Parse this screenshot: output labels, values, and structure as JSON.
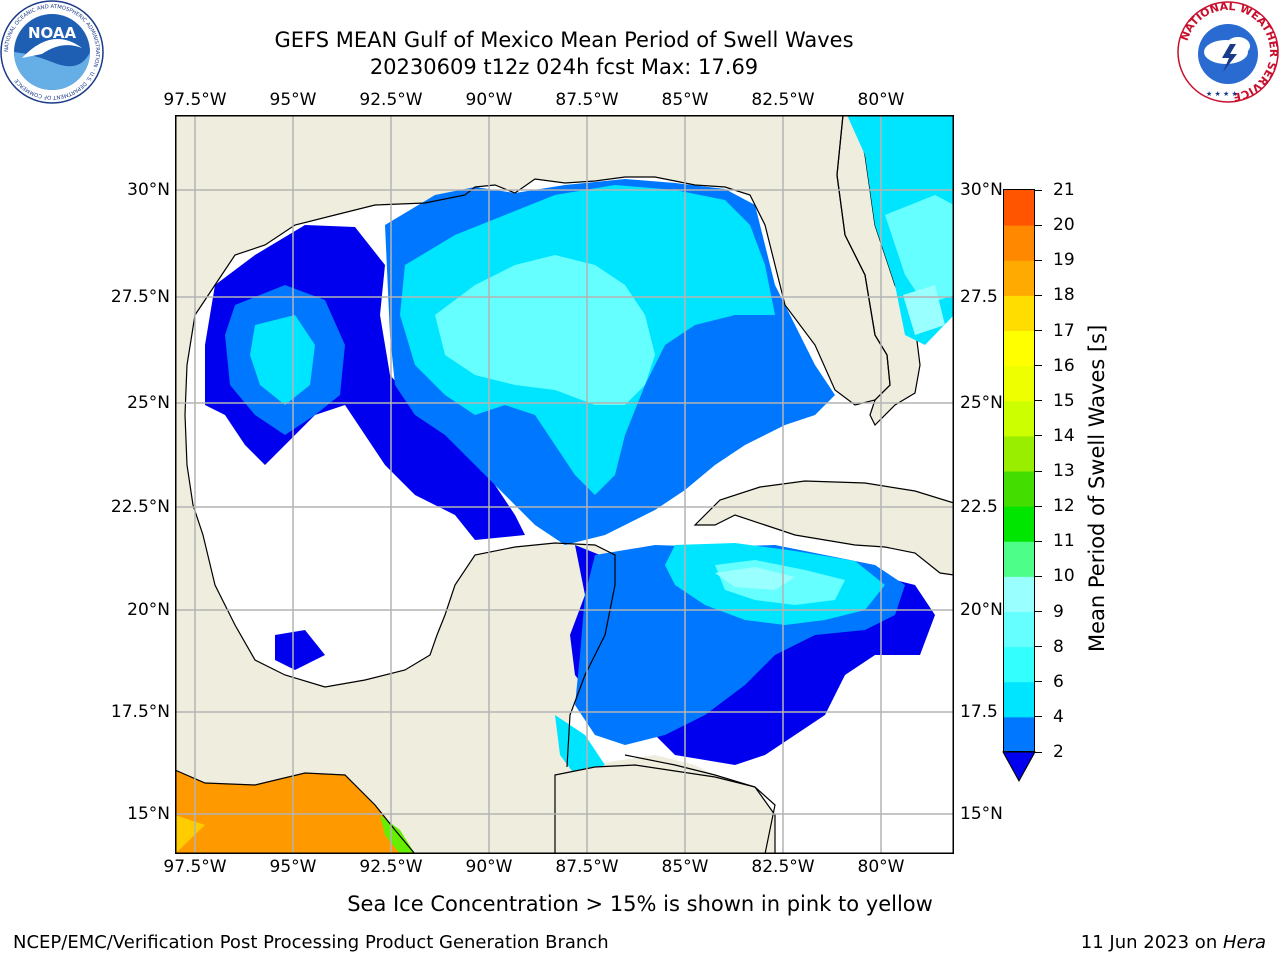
{
  "title": {
    "line1": "GEFS MEAN Gulf of Mexico Mean Period of Swell Waves",
    "line2": "20230609 t12z 024h fcst   Max: 17.69"
  },
  "map": {
    "lon_labels": [
      "97.5°W",
      "95°W",
      "92.5°W",
      "90°W",
      "87.5°W",
      "85°W",
      "82.5°W",
      "80°W"
    ],
    "lat_labels_left": [
      "30°N",
      "27.5°N",
      "25°N",
      "22.5°N",
      "20°N",
      "17.5°N",
      "15°N"
    ],
    "lat_labels_right": [
      "30°N",
      "27.5",
      "25°N",
      "22.5",
      "20°N",
      "17.5",
      "15°N"
    ],
    "colors": {
      "land": "#efedde",
      "ocean_none": "#ffffff",
      "coast": "#000000",
      "grid": "#b4b4b4"
    }
  },
  "colorbar": {
    "title": "Mean Period of Swell Waves [s]",
    "ticks": [
      "2",
      "4",
      "6",
      "8",
      "9",
      "10",
      "11",
      "12",
      "13",
      "14",
      "15",
      "16",
      "17",
      "18",
      "19",
      "20",
      "21"
    ],
    "colors": [
      "#0077ff",
      "#00e5ff",
      "#33ffff",
      "#66ffff",
      "#99ffff",
      "#4dff88",
      "#00e600",
      "#44dd00",
      "#99ee00",
      "#ccff00",
      "#eeff00",
      "#ffff00",
      "#ffdd00",
      "#ffaa00",
      "#ff8800",
      "#ff5500",
      "#ff2200",
      "#ff0000"
    ],
    "under_color": "#0000ee"
  },
  "caption": "Sea Ice Concentration > 15% is shown in pink to yellow",
  "footer": {
    "left": "NCEP/EMC/Verification Post Processing Product Generation Branch",
    "right_date": "11 Jun 2023 on ",
    "right_host": "Hera"
  },
  "logos": {
    "noaa_text": "NOAA",
    "noaa_ring": "NATIONAL OCEANIC AND ATMOSPHERIC ADMINISTRATION · U.S. DEPARTMENT OF COMMERCE",
    "nws_ring": "NATIONAL WEATHER SERVICE"
  }
}
